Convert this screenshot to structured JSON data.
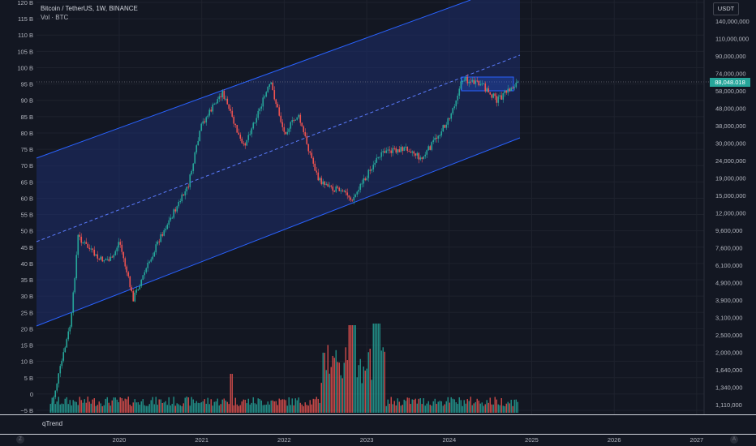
{
  "header": {
    "ticker": "Bitcoin / TetherUS, 1W, BINANCE",
    "volume_label": "Vol · BTC"
  },
  "currency_button": "USDT",
  "current_price": "88,048.018",
  "qtrend_label": "qTrend",
  "left_axis_labels": [
    "120 B",
    "115 B",
    "110 B",
    "105 B",
    "100 B",
    "95 B",
    "90 B",
    "85 B",
    "80 B",
    "75 B",
    "70 B",
    "65 B",
    "60 B",
    "55 B",
    "50 B",
    "45 B",
    "40 B",
    "35 B",
    "30 B",
    "25 B",
    "20 B",
    "15 B",
    "10 B",
    "5 B",
    "0",
    "−5 B"
  ],
  "right_axis_labels": [
    "140,000,000",
    "110,000,000",
    "90,000,000",
    "74,000,000",
    "58,000,000",
    "48,000,000",
    "38,000,000",
    "30,000,000",
    "24,000,000",
    "19,000,000",
    "15,000,000",
    "12,000,000",
    "9,600,000",
    "7,600,000",
    "6,100,000",
    "4,900,000",
    "3,900,000",
    "3,100,000",
    "2,500,000",
    "2,000,000",
    "1,640,000",
    "1,340,000",
    "1,110,000"
  ],
  "time_axis_labels": [
    "2020",
    "2021",
    "2022",
    "2023",
    "2024",
    "2025",
    "2026",
    "2027"
  ],
  "controls": {
    "left": "Z",
    "right": "A"
  },
  "colors": {
    "background": "#131722",
    "up": "#26a69a",
    "down": "#ef5350",
    "channel": "#2962ff",
    "badge": "#26a69a"
  },
  "chart_data": {
    "type": "candlestick",
    "title": "Bitcoin / TetherUS, 1W, BINANCE",
    "scale": "log",
    "x_range": [
      "2019-03",
      "2027-03"
    ],
    "y_range_price": [
      1110000,
      140000000
    ],
    "volume_range": [
      "−5 B",
      "120 B"
    ],
    "last_price": 88048.018,
    "price_path_key_points": [
      {
        "date": "2019-03",
        "price": 1150000
      },
      {
        "date": "2019-06",
        "price": 3500000
      },
      {
        "date": "2019-07",
        "price": 10000000
      },
      {
        "date": "2019-10",
        "price": 7500000
      },
      {
        "date": "2019-12",
        "price": 7500000
      },
      {
        "date": "2020-01",
        "price": 9500000
      },
      {
        "date": "2020-03",
        "price": 4600000
      },
      {
        "date": "2020-07",
        "price": 10000000
      },
      {
        "date": "2020-11",
        "price": 18500000
      },
      {
        "date": "2021-01",
        "price": 40000000
      },
      {
        "date": "2021-04",
        "price": 60000000
      },
      {
        "date": "2021-07",
        "price": 30000000
      },
      {
        "date": "2021-11",
        "price": 67000000
      },
      {
        "date": "2022-01",
        "price": 36000000
      },
      {
        "date": "2022-03",
        "price": 45000000
      },
      {
        "date": "2022-06",
        "price": 20000000
      },
      {
        "date": "2022-11",
        "price": 16000000
      },
      {
        "date": "2023-03",
        "price": 28000000
      },
      {
        "date": "2023-07",
        "price": 30000000
      },
      {
        "date": "2023-09",
        "price": 26000000
      },
      {
        "date": "2024-01",
        "price": 43000000
      },
      {
        "date": "2024-03",
        "price": 71000000
      },
      {
        "date": "2024-06",
        "price": 64000000
      },
      {
        "date": "2024-08",
        "price": 54000000
      },
      {
        "date": "2024-11",
        "price": 88048
      }
    ],
    "volume_note": "weekly volume bars, peaks near 2022-11 and 2023-03"
  }
}
